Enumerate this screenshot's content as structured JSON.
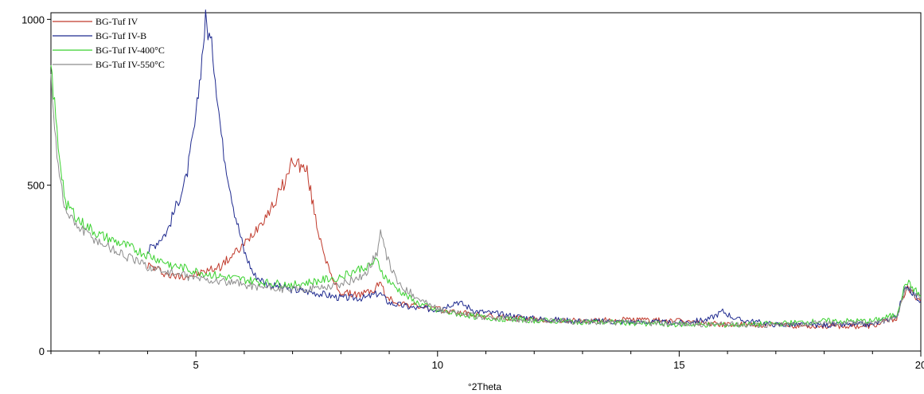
{
  "chart_data": {
    "type": "line",
    "title": "",
    "xlabel": "°2Theta",
    "ylabel": "",
    "xlim": [
      2.0,
      20.0
    ],
    "ylim": [
      0,
      1020
    ],
    "x_ticks": [
      5,
      10,
      15,
      20
    ],
    "x_tick_labels": [
      "5",
      "10",
      "15",
      "20"
    ],
    "x_minor_step": 1,
    "y_ticks": [
      0,
      500,
      1000
    ],
    "y_tick_labels": [
      "0",
      "500",
      "1000"
    ],
    "grid": false,
    "legend_position": "top-left",
    "series": [
      {
        "name": "BG-Tuf IV",
        "color": "#c0392b",
        "x": [
          4.0,
          4.5,
          5.0,
          5.5,
          6.0,
          6.3,
          6.6,
          6.9,
          7.0,
          7.15,
          7.3,
          7.5,
          7.8,
          8.0,
          8.4,
          8.7,
          8.8,
          8.95,
          9.2,
          9.6,
          10.0,
          11,
          12,
          13,
          14,
          15,
          16,
          17,
          18,
          19,
          19.5,
          19.7,
          19.9,
          20.0
        ],
        "values": [
          260,
          225,
          230,
          255,
          320,
          380,
          440,
          530,
          580,
          560,
          540,
          380,
          220,
          175,
          170,
          185,
          210,
          160,
          145,
          135,
          125,
          105,
          95,
          90,
          95,
          90,
          80,
          78,
          75,
          75,
          100,
          190,
          165,
          150
        ]
      },
      {
        "name": "BG-Tuf IV-B",
        "color": "#1f2a8f",
        "x": [
          4.0,
          4.4,
          4.8,
          5.0,
          5.2,
          5.35,
          5.55,
          5.8,
          6.0,
          6.2,
          6.5,
          7.0,
          7.5,
          8.0,
          8.5,
          8.8,
          9.0,
          9.5,
          10.0,
          10.4,
          10.8,
          12,
          13,
          14,
          15,
          15.6,
          15.9,
          16.2,
          17,
          18,
          19,
          19.5,
          19.7,
          19.9,
          20.0
        ],
        "values": [
          300,
          360,
          520,
          700,
          1000,
          900,
          620,
          420,
          300,
          230,
          200,
          185,
          175,
          160,
          160,
          175,
          145,
          130,
          125,
          150,
          120,
          98,
          90,
          88,
          85,
          95,
          120,
          95,
          80,
          78,
          80,
          105,
          200,
          165,
          150
        ]
      },
      {
        "name": "BG-Tuf IV-400°C",
        "color": "#39d12e",
        "x": [
          2.0,
          2.15,
          2.3,
          2.6,
          3.0,
          3.5,
          4.0,
          4.5,
          5.0,
          5.5,
          6.0,
          6.5,
          7.0,
          7.5,
          8.0,
          8.5,
          8.75,
          8.9,
          9.1,
          9.5,
          10.0,
          11,
          12,
          13,
          14,
          15,
          16,
          17,
          18,
          19,
          19.5,
          19.7,
          19.9,
          20.0
        ],
        "values": [
          860,
          620,
          450,
          390,
          350,
          320,
          290,
          260,
          240,
          225,
          215,
          205,
          200,
          210,
          225,
          255,
          270,
          225,
          195,
          150,
          120,
          100,
          92,
          88,
          85,
          80,
          78,
          82,
          90,
          90,
          110,
          210,
          180,
          165
        ]
      },
      {
        "name": "BG-Tuf IV-550°C",
        "color": "#8c8c8c",
        "x": [
          2.0,
          2.15,
          2.3,
          2.6,
          3.0,
          3.5,
          4.0,
          4.5,
          5.0,
          5.5,
          6.0,
          6.5,
          7.0,
          7.5,
          8.0,
          8.5,
          8.75,
          8.82,
          8.95,
          9.2,
          9.6,
          10.0,
          11,
          12,
          13,
          14,
          15,
          16,
          17,
          18,
          19,
          19.5,
          19.7,
          19.9,
          20.0
        ],
        "values": [
          820,
          560,
          420,
          370,
          330,
          290,
          255,
          235,
          220,
          210,
          200,
          190,
          185,
          190,
          200,
          230,
          300,
          355,
          280,
          200,
          160,
          125,
          100,
          92,
          88,
          85,
          82,
          80,
          78,
          85,
          85,
          100,
          195,
          170,
          160
        ]
      }
    ]
  }
}
